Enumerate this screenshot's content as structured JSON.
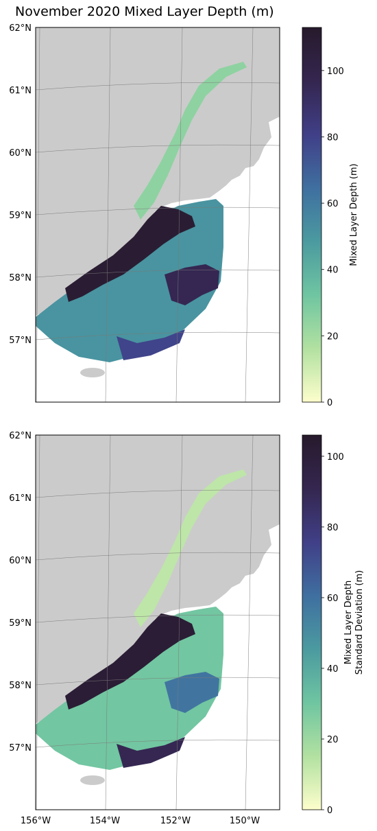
{
  "title": "November 2020 Mixed Layer Depth (m)",
  "colors": {
    "land": "#cbcbcb",
    "graticule": "#7a7a7a",
    "colormap": [
      "#fdfecc",
      "#b2e1a1",
      "#6fc5a1",
      "#4b9aa0",
      "#3f6fa0",
      "#403f87",
      "#34264f",
      "#271a2c"
    ]
  },
  "panels": [
    {
      "id": "mld",
      "lat_labels": [
        "62°N",
        "61°N",
        "60°N",
        "59°N",
        "58°N",
        "57°N"
      ],
      "colorbar": {
        "label_lines": [
          "Mixed Layer Depth (m)"
        ],
        "ticks": [
          "0",
          "20",
          "40",
          "60",
          "80",
          "100"
        ],
        "tick_values": [
          0,
          20,
          40,
          60,
          80,
          100
        ],
        "vmin": 0,
        "vmax": 113
      }
    },
    {
      "id": "mld-std",
      "lat_labels": [
        "62°N",
        "61°N",
        "60°N",
        "59°N",
        "58°N",
        "57°N"
      ],
      "lon_labels": [
        "156°W",
        "154°W",
        "152°W",
        "150°W"
      ],
      "colorbar": {
        "label_lines": [
          "Mixed Layer Depth",
          "Standard Deviation (m)"
        ],
        "ticks": [
          "0",
          "20",
          "40",
          "60",
          "80",
          "100"
        ],
        "tick_values": [
          0,
          20,
          40,
          60,
          80,
          100
        ],
        "vmin": 0,
        "vmax": 106
      }
    }
  ]
}
